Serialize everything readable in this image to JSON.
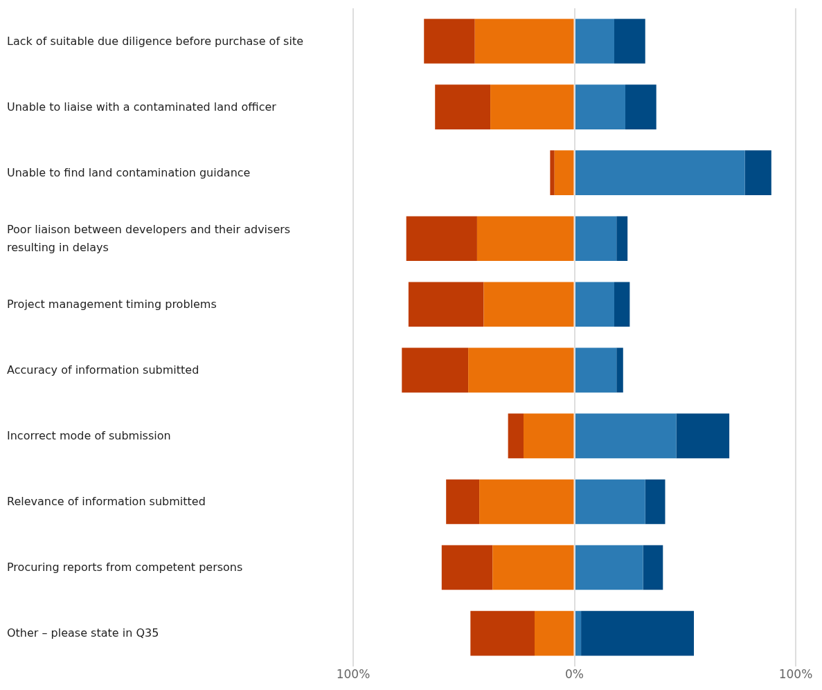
{
  "chart_data": {
    "type": "bar",
    "orientation": "horizontal",
    "stacked": true,
    "categories": [
      "Lack of suitable due diligence before purchase of site",
      "Unable to liaise with a contaminated land officer",
      "Unable to find land contamination guidance",
      "Poor liaison between developers and their advisers resulting in delays",
      "Project management timing problems",
      "Accuracy of information submitted",
      "Incorrect mode of submission",
      "Relevance of information submitted",
      "Procuring reports from competent persons",
      "Other – please state in Q35"
    ],
    "series": [
      {
        "color": "#eb7108",
        "values": [
          -45,
          -38,
          -9,
          -44,
          -41,
          -48,
          -23,
          -43,
          -37,
          -18
        ]
      },
      {
        "color": "#bf3b05",
        "values": [
          -23,
          -25,
          -2,
          -32,
          -34,
          -30,
          -7,
          -15,
          -23,
          -29
        ]
      },
      {
        "color": "#2c7bb4",
        "values": [
          18,
          23,
          77,
          19,
          18,
          19,
          46,
          32,
          31,
          3
        ]
      },
      {
        "color": "#004a84",
        "values": [
          14,
          14,
          12,
          5,
          7,
          3,
          24,
          9,
          9,
          51
        ]
      }
    ],
    "xlim": [
      -100,
      100
    ],
    "xticks": [
      {
        "value": -100,
        "label": "100%"
      },
      {
        "value": 0,
        "label": "0%"
      },
      {
        "value": 100,
        "label": "100%"
      }
    ],
    "grid": "x",
    "legend": false
  }
}
